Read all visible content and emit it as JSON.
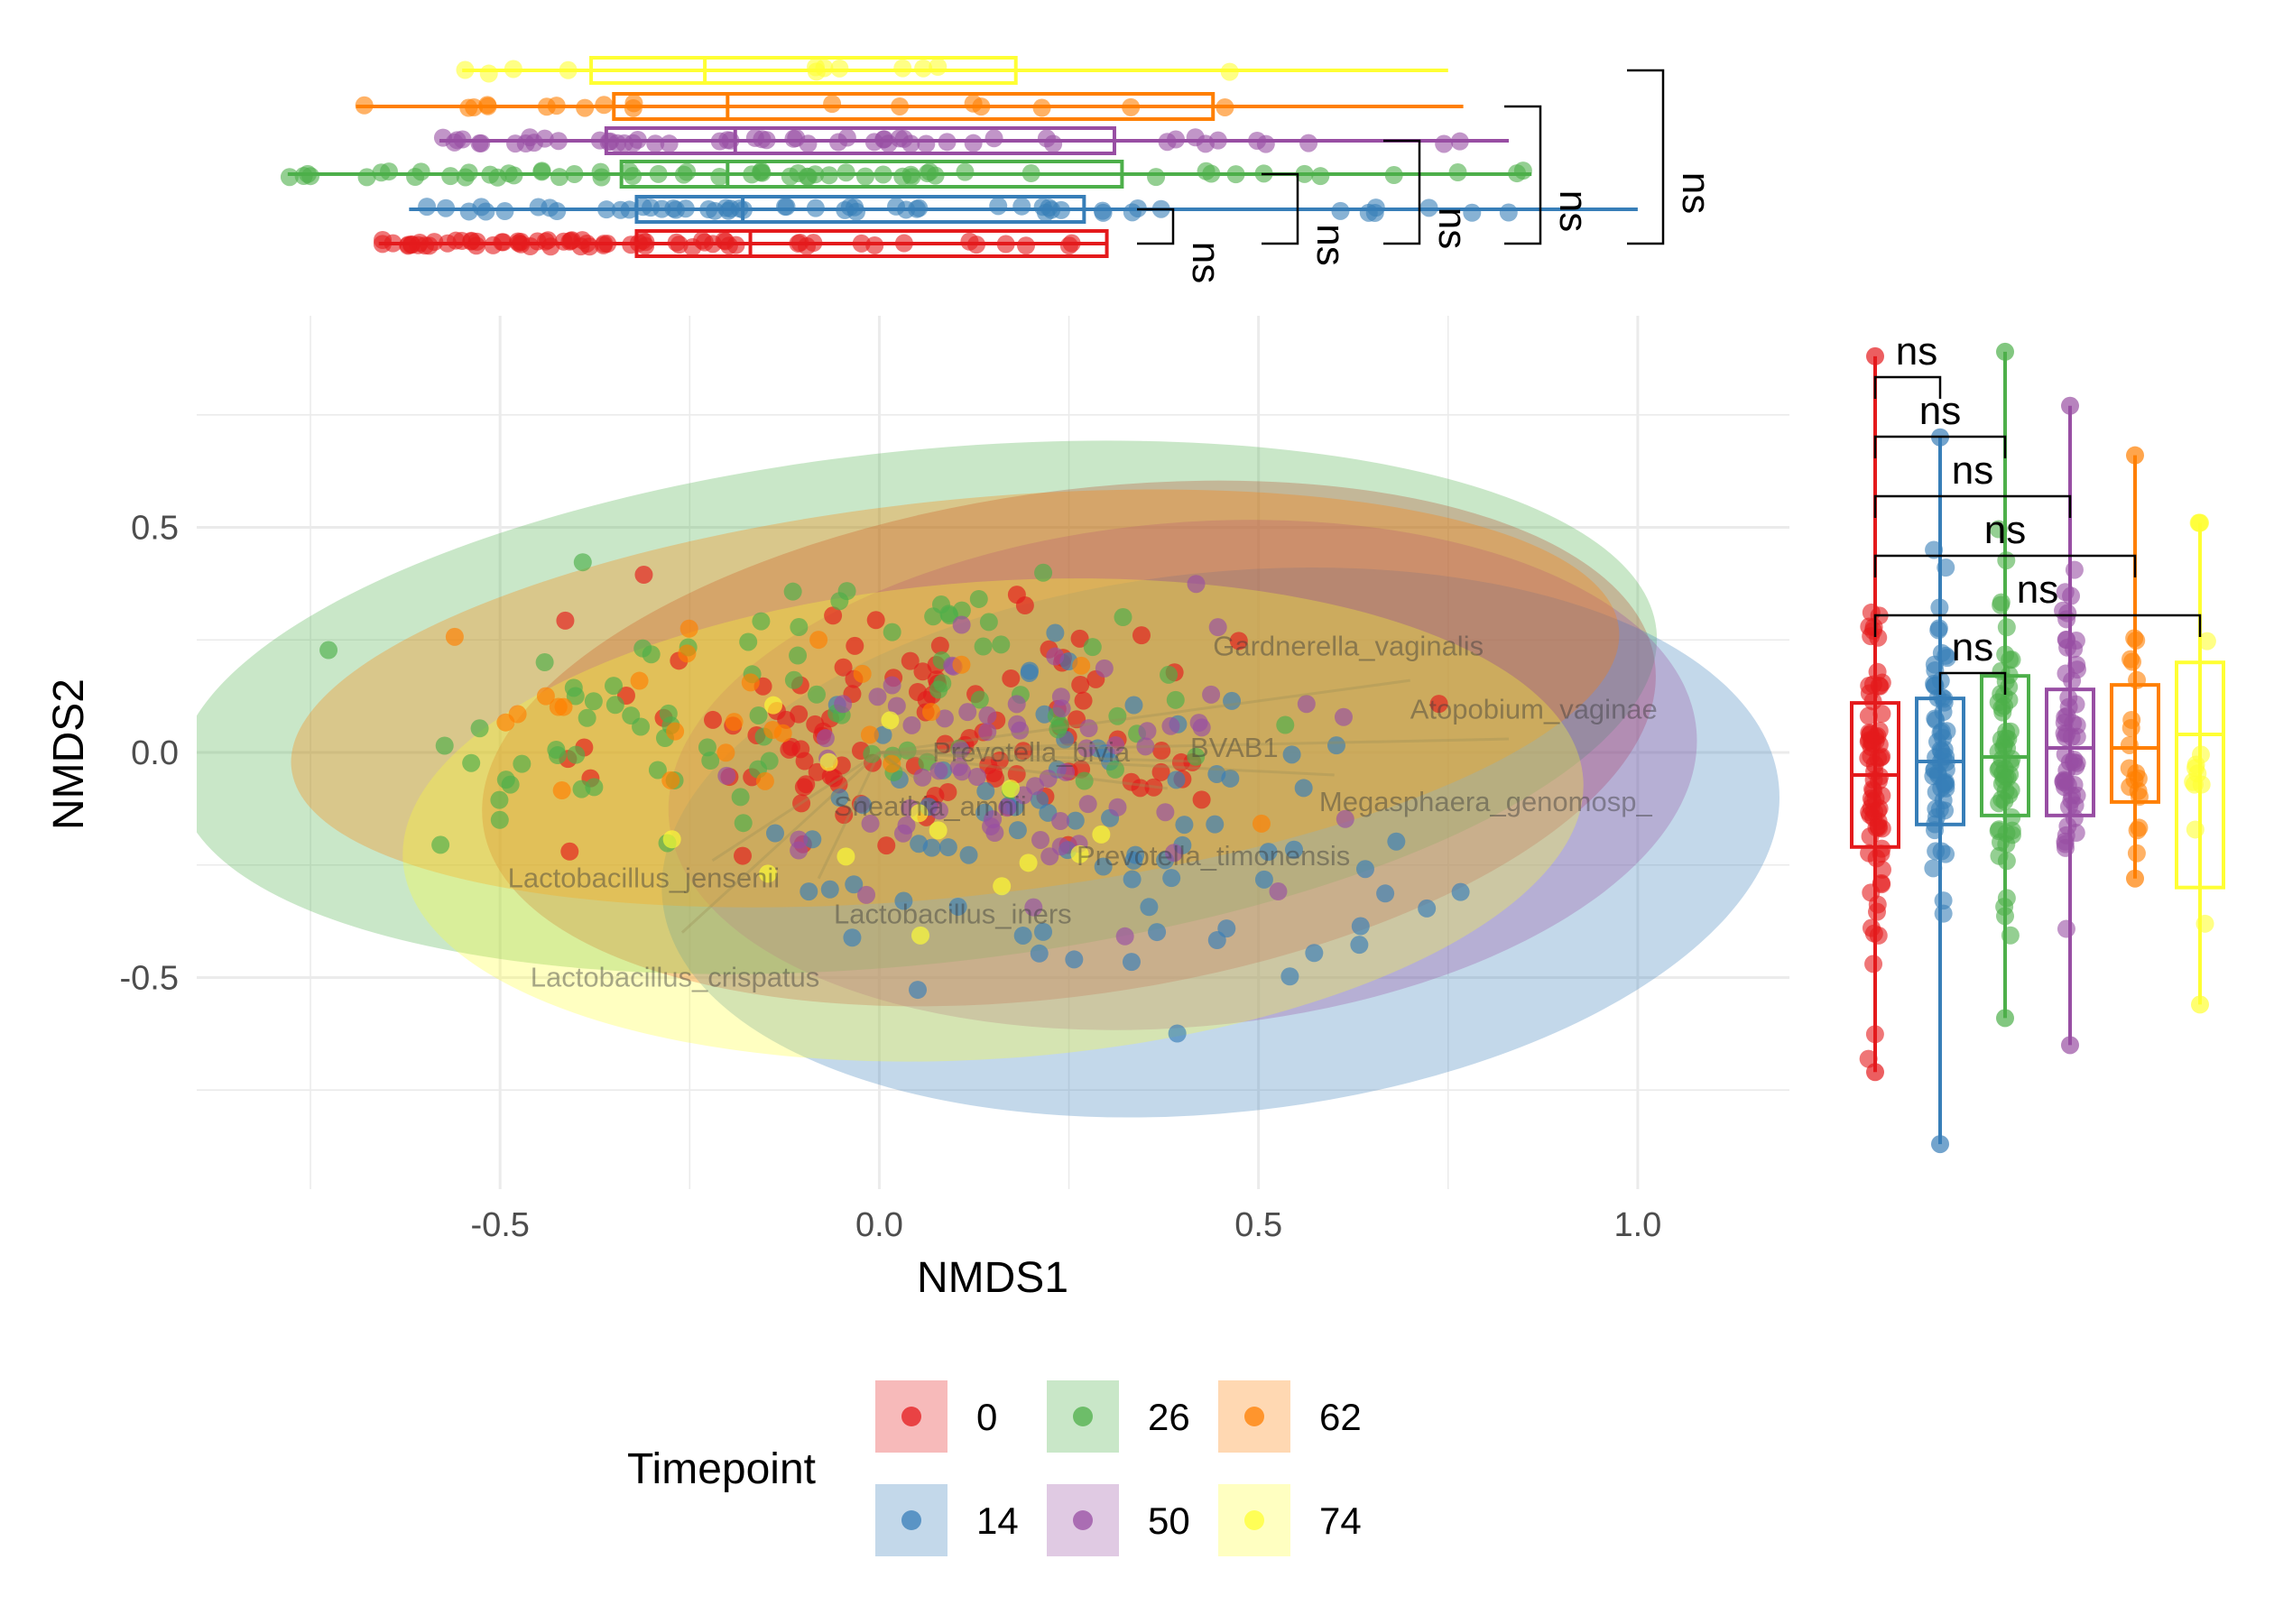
{
  "chart_data": {
    "type": "scatter",
    "title": "",
    "xlabel": "NMDS1",
    "ylabel": "NMDS2",
    "xlim": [
      -0.9,
      1.2
    ],
    "ylim": [
      -0.97,
      0.97
    ],
    "x_ticks": [
      "-0.5",
      "0.0",
      "0.5",
      "1.0"
    ],
    "y_ticks": [
      "-0.5",
      "0.0",
      "0.5"
    ],
    "grid": true,
    "legend": {
      "title": "Timepoint",
      "position": "bottom",
      "entries": [
        "0",
        "14",
        "26",
        "50",
        "62",
        "74"
      ]
    },
    "series_colors": {
      "0": "#e41a1c",
      "14": "#377eb8",
      "26": "#4daf4a",
      "50": "#984ea3",
      "62": "#ff7f00",
      "74": "#ffff33"
    },
    "ellipses": [
      {
        "name": "0",
        "cx": 0.25,
        "cy": 0.02,
        "rx": 0.78,
        "ry": 0.56,
        "angle_deg": -8
      },
      {
        "name": "26",
        "cx": 0.05,
        "cy": 0.1,
        "rx": 0.98,
        "ry": 0.57,
        "angle_deg": -6
      },
      {
        "name": "14",
        "cx": 0.45,
        "cy": -0.2,
        "rx": 0.74,
        "ry": 0.6,
        "angle_deg": -6
      },
      {
        "name": "50",
        "cx": 0.4,
        "cy": -0.05,
        "rx": 0.68,
        "ry": 0.56,
        "angle_deg": -5
      },
      {
        "name": "62",
        "cx": 0.1,
        "cy": 0.12,
        "rx": 0.88,
        "ry": 0.44,
        "angle_deg": -6
      },
      {
        "name": "74",
        "cx": 0.15,
        "cy": -0.15,
        "rx": 0.78,
        "ry": 0.53,
        "angle_deg": -4
      }
    ],
    "vectors": [
      {
        "label": "Gardnerella_vaginalis",
        "x": 0.7,
        "y": 0.16,
        "lx": 0.44,
        "ly": 0.235
      },
      {
        "label": "Atopobium_vaginae",
        "x": 0.83,
        "y": 0.03,
        "lx": 0.7,
        "ly": 0.095
      },
      {
        "label": "Prevotella_bivia",
        "x": 0.3,
        "y": 0.02,
        "lx": 0.07,
        "ly": 0.0
      },
      {
        "label": "BVAB1",
        "x": 0.42,
        "y": -0.02,
        "lx": 0.41,
        "ly": 0.01
      },
      {
        "label": "Megasphaera_genomosp_",
        "x": 0.6,
        "y": -0.05,
        "lx": 0.58,
        "ly": -0.11
      },
      {
        "label": "Sneathia_amnii",
        "x": 0.05,
        "y": -0.06,
        "lx": -0.06,
        "ly": -0.12
      },
      {
        "label": "Prevotella_timonensis",
        "x": 0.38,
        "y": -0.08,
        "lx": 0.26,
        "ly": -0.23
      },
      {
        "label": "Lactobacillus_jensenii",
        "x": -0.22,
        "y": -0.24,
        "lx": -0.49,
        "ly": -0.28
      },
      {
        "label": "Lactobacillus_iners",
        "x": -0.08,
        "y": -0.28,
        "lx": -0.06,
        "ly": -0.36
      },
      {
        "label": "Lactobacillus_crispatus",
        "x": -0.26,
        "y": -0.4,
        "lx": -0.46,
        "ly": -0.5
      }
    ],
    "top_boxplot": {
      "axis": "NMDS1",
      "groups": [
        {
          "name": "0",
          "whisker": [
            -0.66,
            0.3
          ],
          "q1": -0.32,
          "median": -0.17,
          "q3": 0.3
        },
        {
          "name": "14",
          "whisker": [
            -0.62,
            1.0
          ],
          "q1": -0.32,
          "median": -0.18,
          "q3": 0.27
        },
        {
          "name": "26",
          "whisker": [
            -0.78,
            0.86
          ],
          "q1": -0.34,
          "median": -0.2,
          "q3": 0.32
        },
        {
          "name": "50",
          "whisker": [
            -0.58,
            0.83
          ],
          "q1": -0.36,
          "median": -0.19,
          "q3": 0.31
        },
        {
          "name": "62",
          "whisker": [
            -0.69,
            0.77
          ],
          "q1": -0.35,
          "median": -0.2,
          "q3": 0.44
        },
        {
          "name": "74",
          "whisker": [
            -0.55,
            0.75
          ],
          "q1": -0.38,
          "median": -0.23,
          "q3": 0.18
        }
      ],
      "comparisons": [
        {
          "label": "ns",
          "from": "0",
          "to": "14"
        },
        {
          "label": "ns",
          "from": "0",
          "to": "26"
        },
        {
          "label": "ns",
          "from": "0",
          "to": "50"
        },
        {
          "label": "ns",
          "from": "0",
          "to": "62"
        },
        {
          "label": "ns",
          "from": "0",
          "to": "74"
        }
      ]
    },
    "right_boxplot": {
      "axis": "NMDS2",
      "groups": [
        {
          "name": "0",
          "whisker": [
            -0.71,
            0.88
          ],
          "q1": -0.21,
          "median": -0.05,
          "q3": 0.11
        },
        {
          "name": "14",
          "whisker": [
            -0.87,
            0.7
          ],
          "q1": -0.16,
          "median": -0.02,
          "q3": 0.12
        },
        {
          "name": "26",
          "whisker": [
            -0.59,
            0.89
          ],
          "q1": -0.14,
          "median": -0.01,
          "q3": 0.17
        },
        {
          "name": "50",
          "whisker": [
            -0.65,
            0.77
          ],
          "q1": -0.14,
          "median": 0.01,
          "q3": 0.14
        },
        {
          "name": "62",
          "whisker": [
            -0.28,
            0.66
          ],
          "q1": -0.11,
          "median": 0.01,
          "q3": 0.15
        },
        {
          "name": "74",
          "whisker": [
            -0.56,
            0.51
          ],
          "q1": -0.3,
          "median": 0.04,
          "q3": 0.2
        }
      ],
      "comparisons": [
        {
          "label": "ns",
          "from": "0",
          "to": "14"
        },
        {
          "label": "ns",
          "from": "0",
          "to": "26"
        },
        {
          "label": "ns",
          "from": "0",
          "to": "50"
        },
        {
          "label": "ns",
          "from": "0",
          "to": "62"
        },
        {
          "label": "ns",
          "from": "0",
          "to": "74"
        },
        {
          "label": "ns",
          "from": "14",
          "to": "26"
        }
      ]
    }
  }
}
